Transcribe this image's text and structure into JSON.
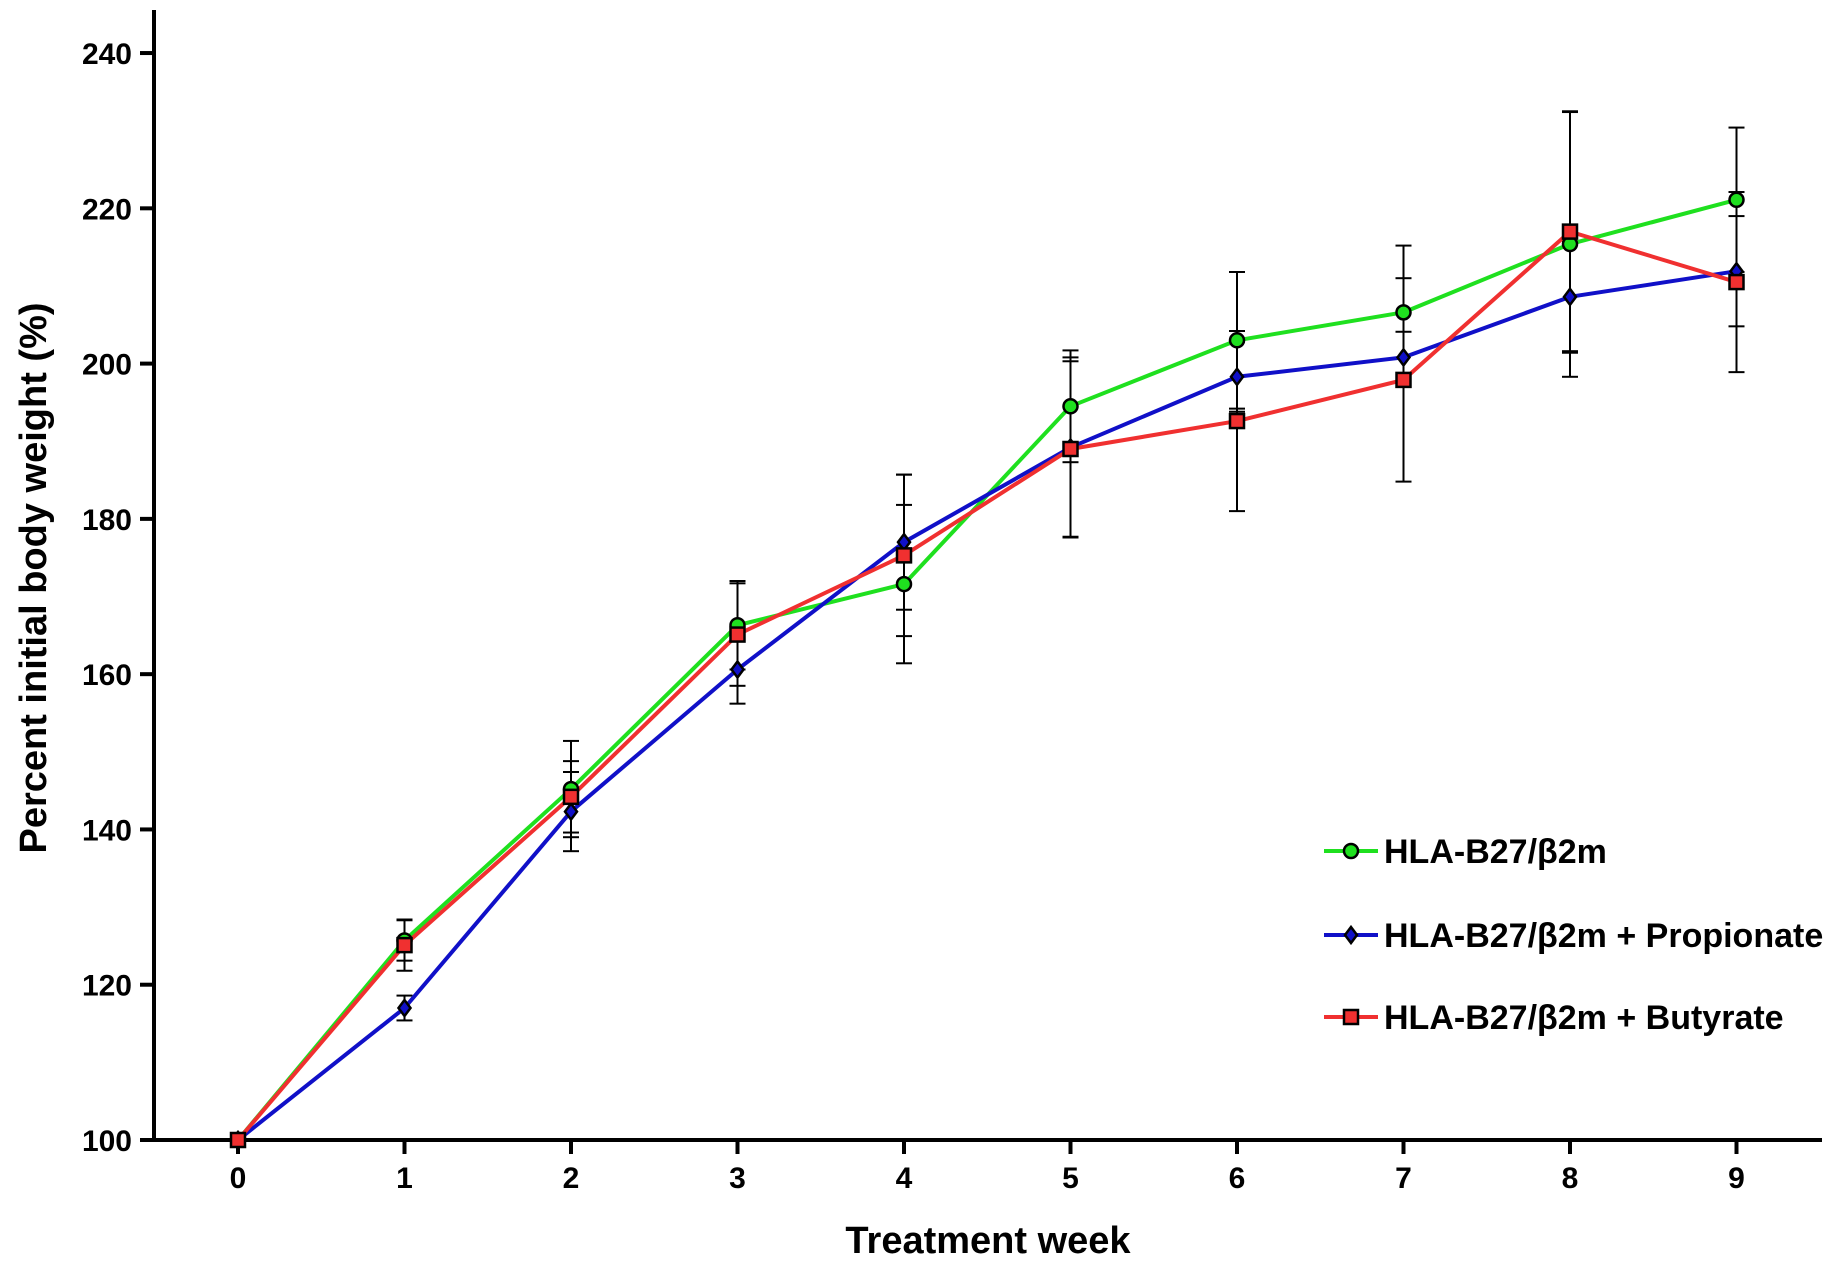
{
  "chart_data": {
    "type": "line",
    "title": "",
    "xlabel": "Treatment week",
    "ylabel": "Percent initial body weight (%)",
    "x": [
      0,
      1,
      2,
      3,
      4,
      5,
      6,
      7,
      8,
      9
    ],
    "xticks": [
      "0",
      "1",
      "2",
      "3",
      "4",
      "5",
      "6",
      "7",
      "8",
      "9"
    ],
    "xlim": [
      -0.5,
      9.5
    ],
    "ylim": [
      100,
      240
    ],
    "yticks": [
      "100",
      "120",
      "140",
      "160",
      "180",
      "200",
      "220",
      "240"
    ],
    "grid": false,
    "legend_position": "lower-right",
    "series": [
      {
        "name": "HLA-B27/β2m",
        "color": "#1fe01f",
        "marker": "circle",
        "values": [
          100,
          125.7,
          145.2,
          166.3,
          171.6,
          194.5,
          203,
          206.6,
          215.4,
          221.1
        ],
        "error": [
          0,
          2.6,
          6.2,
          5.7,
          10.2,
          7.2,
          8.8,
          8.6,
          17.1,
          9.3
        ]
      },
      {
        "name": "HLA-B27/β2m + Propionate",
        "color": "#1010c8",
        "marker": "diamond",
        "values": [
          100,
          117,
          142.3,
          160.6,
          177,
          189.2,
          198.3,
          200.8,
          208.6,
          211.9
        ],
        "error": [
          0,
          1.6,
          5.1,
          4.4,
          8.7,
          11.6,
          4.5,
          3.3,
          7.2,
          7.1
        ]
      },
      {
        "name": "HLA-B27/β2m + Butyrate",
        "color": "#f03030",
        "marker": "square",
        "values": [
          100,
          125.1,
          144.2,
          165.1,
          175.3,
          189,
          192.6,
          197.9,
          217,
          210.5
        ],
        "error": [
          0,
          3.3,
          4.6,
          6.6,
          10.4,
          11.3,
          11.6,
          13.1,
          15.4,
          11.6
        ]
      }
    ]
  }
}
